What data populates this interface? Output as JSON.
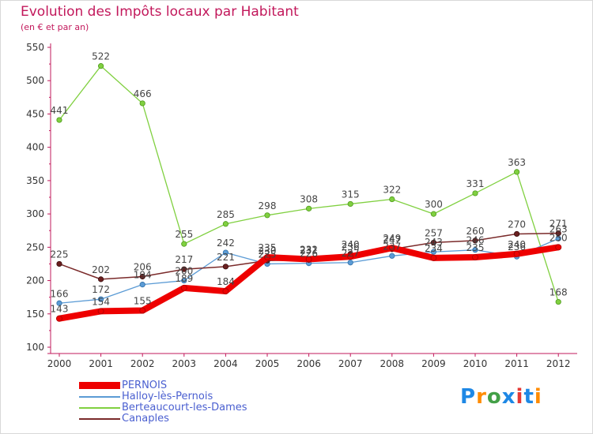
{
  "header": {
    "title": "Evolution des Impôts locaux par Habitant",
    "subtitle": "(en € et par an)"
  },
  "chart_data": {
    "type": "line",
    "title": "Evolution des Impôts locaux par Habitant",
    "subtitle": "(en € et par an)",
    "xlabel": "",
    "ylabel": "",
    "x": [
      2000,
      2001,
      2002,
      2003,
      2004,
      2005,
      2006,
      2007,
      2008,
      2009,
      2010,
      2011,
      2012
    ],
    "x_tick_labels": [
      "2000",
      "2001",
      "2002",
      "2003",
      "2004",
      "2005",
      "2006",
      "2007",
      "2008",
      "2009",
      "2010",
      "2011",
      "2012"
    ],
    "y_ticks": [
      100,
      150,
      200,
      250,
      300,
      350,
      400,
      450,
      500,
      550
    ],
    "y_tick_labels": [
      "100",
      "150",
      "200",
      "250",
      "300",
      "350",
      "400",
      "450",
      "500",
      "550"
    ],
    "ylim": [
      100,
      550
    ],
    "grid": false,
    "legend_position": "bottom-left",
    "series": [
      {
        "name": "PERNOIS",
        "color": "#ee0000",
        "values": [
          143,
          154,
          155,
          189,
          184,
          235,
          232,
          236,
          249,
          234,
          235,
          240,
          250
        ],
        "labels": [
          "143",
          "154",
          "155",
          "189",
          "184",
          "235",
          "232",
          "236",
          "249",
          "234",
          "235",
          "240",
          "250"
        ]
      },
      {
        "name": "Halloy-lès-Pernois",
        "color": "#5b9bd5",
        "values": [
          166,
          172,
          194,
          200,
          242,
          225,
          226,
          227,
          237,
          243,
          246,
          236,
          263
        ],
        "labels": [
          "166",
          "172",
          "194",
          "200",
          "242",
          "225",
          "226",
          "227",
          "237",
          "243",
          "246",
          "236",
          "263"
        ]
      },
      {
        "name": "Berteaucourt-les-Dames",
        "color": "#80d040",
        "values": [
          441,
          522,
          466,
          255,
          285,
          298,
          308,
          315,
          322,
          300,
          331,
          363,
          168
        ],
        "labels": [
          "441",
          "522",
          "466",
          "255",
          "285",
          "298",
          "308",
          "315",
          "322",
          "300",
          "331",
          "363",
          "168"
        ]
      },
      {
        "name": "Canaples",
        "color": "#7a2a2a",
        "values": [
          225,
          202,
          206,
          217,
          221,
          230,
          231,
          240,
          247,
          257,
          260,
          270,
          271
        ],
        "labels": [
          "225",
          "202",
          "206",
          "217",
          "221",
          "230",
          "231",
          "240",
          "247",
          "257",
          "260",
          "270",
          "271"
        ]
      }
    ]
  },
  "logo": {
    "text": "Proxiti",
    "letters": [
      "P",
      "r",
      "o",
      "x",
      "i",
      "t",
      "i"
    ],
    "colors": [
      "#1e88e5",
      "#ff8c00",
      "#43a047",
      "#1e88e5",
      "#e53935",
      "#1e88e5",
      "#ff8c00"
    ]
  }
}
